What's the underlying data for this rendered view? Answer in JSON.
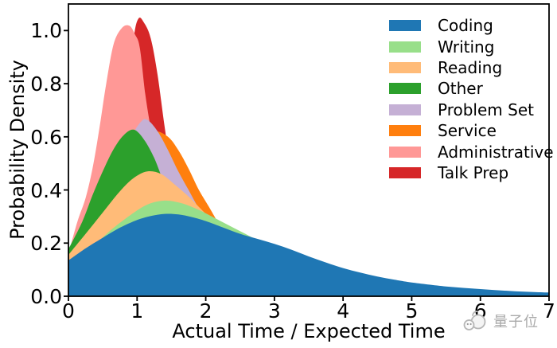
{
  "figure": {
    "xlabel": "Actual Time / Expected Time",
    "ylabel": "Probability Density",
    "x_tick_labels": [
      "0",
      "1",
      "2",
      "3",
      "4",
      "5",
      "6",
      "7"
    ],
    "y_tick_labels": [
      "0.0",
      "0.2",
      "0.4",
      "0.6",
      "0.8",
      "1.0"
    ],
    "frame_color": "#000000",
    "background_color": "#ffffff"
  },
  "watermark": {
    "text": "量子位",
    "color": "#a9a9a9",
    "icon": "qbitai-mascot-icon"
  },
  "chart_data": {
    "type": "area",
    "title": "",
    "xlabel": "Actual Time / Expected Time",
    "ylabel": "Probability Density",
    "xlim": [
      0,
      7
    ],
    "ylim": [
      0,
      1.1
    ],
    "x_ticks": [
      0,
      1,
      2,
      3,
      4,
      5,
      6,
      7
    ],
    "y_ticks": [
      0.0,
      0.2,
      0.4,
      0.6,
      0.8,
      1.0
    ],
    "grid": false,
    "legend_position": "upper right",
    "legend_frame": false,
    "note": "Overlapping opaque filled density curves; painted back-to-front per draw_order so earlier-listed legend series appear in front.",
    "draw_order": [
      "Talk Prep",
      "Administrative",
      "Service",
      "Problem Set",
      "Other",
      "Reading",
      "Writing",
      "Coding"
    ],
    "series": [
      {
        "name": "Coding",
        "color": "#1f77b4",
        "peak": {
          "x": 1.4,
          "y": 0.31
        },
        "points": [
          [
            0,
            0.135
          ],
          [
            0.25,
            0.18
          ],
          [
            0.5,
            0.22
          ],
          [
            0.75,
            0.258
          ],
          [
            1.0,
            0.287
          ],
          [
            1.2,
            0.302
          ],
          [
            1.4,
            0.31
          ],
          [
            1.6,
            0.308
          ],
          [
            1.8,
            0.298
          ],
          [
            2.0,
            0.283
          ],
          [
            2.25,
            0.259
          ],
          [
            2.5,
            0.235
          ],
          [
            2.75,
            0.216
          ],
          [
            3.0,
            0.197
          ],
          [
            3.25,
            0.175
          ],
          [
            3.5,
            0.15
          ],
          [
            3.75,
            0.127
          ],
          [
            4.0,
            0.106
          ],
          [
            4.25,
            0.089
          ],
          [
            4.5,
            0.074
          ],
          [
            4.75,
            0.062
          ],
          [
            5.0,
            0.052
          ],
          [
            5.5,
            0.037
          ],
          [
            6.0,
            0.027
          ],
          [
            6.5,
            0.019
          ],
          [
            7.0,
            0.014
          ]
        ]
      },
      {
        "name": "Writing",
        "color": "#98df8a",
        "peak": {
          "x": 1.4,
          "y": 0.36
        },
        "points": [
          [
            0,
            0.1
          ],
          [
            0.3,
            0.17
          ],
          [
            0.6,
            0.245
          ],
          [
            0.9,
            0.305
          ],
          [
            1.15,
            0.345
          ],
          [
            1.4,
            0.36
          ],
          [
            1.65,
            0.35
          ],
          [
            1.9,
            0.325
          ],
          [
            2.2,
            0.285
          ],
          [
            2.5,
            0.245
          ],
          [
            2.8,
            0.205
          ],
          [
            3.0,
            0.18
          ],
          [
            3.3,
            0.145
          ],
          [
            3.6,
            0.113
          ],
          [
            4.0,
            0.08
          ],
          [
            4.5,
            0.05
          ],
          [
            5.0,
            0.032
          ],
          [
            5.5,
            0.02
          ],
          [
            6.0,
            0.013
          ],
          [
            6.5,
            0.008
          ],
          [
            7.0,
            0.005
          ]
        ]
      },
      {
        "name": "Reading",
        "color": "#ffbb78",
        "peak": {
          "x": 1.15,
          "y": 0.47
        },
        "points": [
          [
            0,
            0.156
          ],
          [
            0.25,
            0.235
          ],
          [
            0.5,
            0.315
          ],
          [
            0.75,
            0.395
          ],
          [
            0.95,
            0.445
          ],
          [
            1.15,
            0.47
          ],
          [
            1.35,
            0.46
          ],
          [
            1.55,
            0.42
          ],
          [
            1.75,
            0.375
          ],
          [
            2.0,
            0.31
          ],
          [
            2.3,
            0.235
          ],
          [
            2.6,
            0.17
          ],
          [
            3.0,
            0.11
          ],
          [
            3.5,
            0.065
          ],
          [
            4.0,
            0.038
          ],
          [
            4.5,
            0.022
          ],
          [
            5.0,
            0.013
          ],
          [
            6.0,
            0.005
          ],
          [
            7.0,
            0.002
          ]
        ]
      },
      {
        "name": "Other",
        "color": "#2ca02c",
        "peak": {
          "x": 0.95,
          "y": 0.627
        },
        "points": [
          [
            0,
            0.177
          ],
          [
            0.2,
            0.28
          ],
          [
            0.35,
            0.38
          ],
          [
            0.5,
            0.47
          ],
          [
            0.65,
            0.55
          ],
          [
            0.8,
            0.605
          ],
          [
            0.95,
            0.627
          ],
          [
            1.1,
            0.59
          ],
          [
            1.25,
            0.52
          ],
          [
            1.4,
            0.42
          ],
          [
            1.55,
            0.33
          ],
          [
            1.7,
            0.25
          ],
          [
            1.9,
            0.17
          ],
          [
            2.1,
            0.115
          ],
          [
            2.4,
            0.065
          ],
          [
            2.8,
            0.03
          ],
          [
            3.2,
            0.014
          ],
          [
            4.0,
            0.004
          ],
          [
            5.0,
            0.001
          ],
          [
            7.0,
            0.0
          ]
        ]
      },
      {
        "name": "Problem Set",
        "color": "#c5b0d5",
        "peak": {
          "x": 1.1,
          "y": 0.665
        },
        "points": [
          [
            0,
            0.02
          ],
          [
            0.3,
            0.14
          ],
          [
            0.5,
            0.28
          ],
          [
            0.7,
            0.45
          ],
          [
            0.9,
            0.59
          ],
          [
            1.05,
            0.655
          ],
          [
            1.15,
            0.664
          ],
          [
            1.3,
            0.62
          ],
          [
            1.45,
            0.55
          ],
          [
            1.6,
            0.47
          ],
          [
            1.75,
            0.4
          ],
          [
            1.9,
            0.33
          ],
          [
            2.1,
            0.25
          ],
          [
            2.4,
            0.16
          ],
          [
            2.8,
            0.09
          ],
          [
            3.2,
            0.05
          ],
          [
            4.0,
            0.015
          ],
          [
            5.0,
            0.004
          ],
          [
            7.0,
            0.0
          ]
        ]
      },
      {
        "name": "Service",
        "color": "#ff7f0e",
        "peak": {
          "x": 1.25,
          "y": 0.62
        },
        "points": [
          [
            0,
            0.05
          ],
          [
            0.3,
            0.17
          ],
          [
            0.6,
            0.34
          ],
          [
            0.85,
            0.48
          ],
          [
            1.05,
            0.575
          ],
          [
            1.25,
            0.62
          ],
          [
            1.45,
            0.6
          ],
          [
            1.6,
            0.55
          ],
          [
            1.75,
            0.48
          ],
          [
            1.9,
            0.4
          ],
          [
            2.05,
            0.335
          ],
          [
            2.2,
            0.27
          ],
          [
            2.4,
            0.2
          ],
          [
            2.6,
            0.145
          ],
          [
            2.9,
            0.09
          ],
          [
            3.2,
            0.055
          ],
          [
            3.6,
            0.03
          ],
          [
            4.0,
            0.016
          ],
          [
            5.0,
            0.004
          ],
          [
            7.0,
            0.0
          ]
        ]
      },
      {
        "name": "Administrative",
        "color": "#ff9896",
        "peak": {
          "x": 0.89,
          "y": 1.018
        },
        "points": [
          [
            0,
            0.16
          ],
          [
            0.13,
            0.28
          ],
          [
            0.25,
            0.37
          ],
          [
            0.35,
            0.48
          ],
          [
            0.45,
            0.63
          ],
          [
            0.55,
            0.8
          ],
          [
            0.66,
            0.95
          ],
          [
            0.78,
            1.01
          ],
          [
            0.89,
            1.018
          ],
          [
            0.97,
            0.985
          ],
          [
            1.04,
            0.935
          ],
          [
            1.12,
            0.76
          ],
          [
            1.22,
            0.6
          ],
          [
            1.32,
            0.48
          ],
          [
            1.45,
            0.35
          ],
          [
            1.6,
            0.24
          ],
          [
            1.8,
            0.145
          ],
          [
            2.0,
            0.09
          ],
          [
            2.3,
            0.045
          ],
          [
            2.7,
            0.02
          ],
          [
            3.5,
            0.005
          ],
          [
            5.0,
            0.001
          ],
          [
            7.0,
            0.0
          ]
        ]
      },
      {
        "name": "Talk Prep",
        "color": "#d62728",
        "peak": {
          "x": 1.02,
          "y": 1.045
        },
        "points": [
          [
            0,
            0.0
          ],
          [
            0.5,
            0.12
          ],
          [
            0.7,
            0.38
          ],
          [
            0.85,
            0.72
          ],
          [
            0.95,
            0.97
          ],
          [
            1.02,
            1.045
          ],
          [
            1.1,
            1.03
          ],
          [
            1.2,
            0.97
          ],
          [
            1.3,
            0.83
          ],
          [
            1.4,
            0.64
          ],
          [
            1.5,
            0.47
          ],
          [
            1.6,
            0.35
          ],
          [
            1.75,
            0.24
          ],
          [
            1.9,
            0.17
          ],
          [
            2.1,
            0.1
          ],
          [
            2.5,
            0.035
          ],
          [
            3.0,
            0.012
          ],
          [
            4.0,
            0.002
          ],
          [
            5.0,
            0.001
          ],
          [
            7.0,
            0.0
          ]
        ]
      }
    ]
  }
}
